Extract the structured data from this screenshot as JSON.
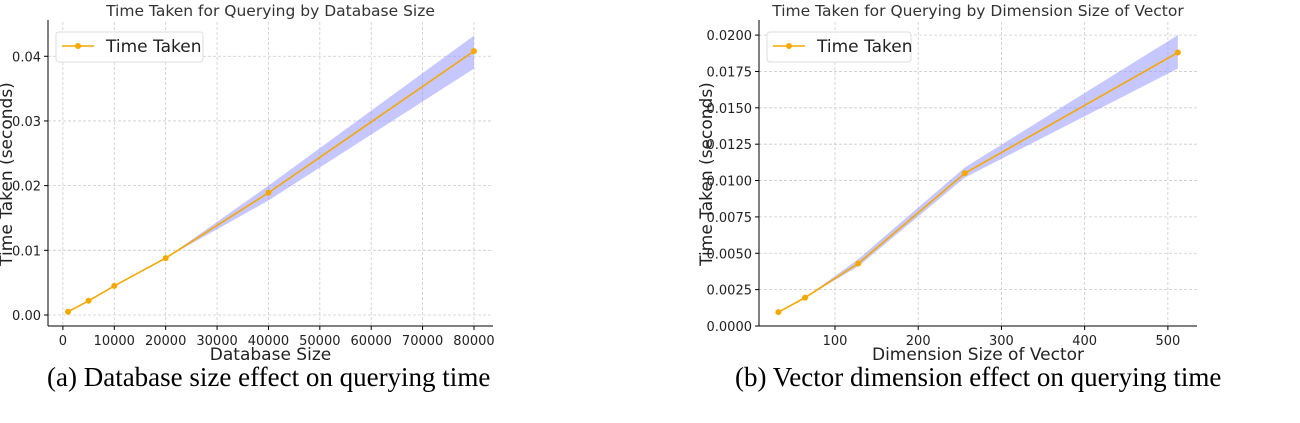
{
  "chart_data": [
    {
      "type": "line",
      "title": "Time Taken for Querying by Database Size",
      "xlabel": "Database Size",
      "ylabel": "Time Taken (seconds)",
      "xlim": [
        -2900,
        83700
      ],
      "ylim": [
        -0.0017,
        0.0453
      ],
      "xticks": [
        0,
        10000,
        20000,
        30000,
        40000,
        50000,
        60000,
        70000,
        80000
      ],
      "yticks": [
        0.0,
        0.01,
        0.02,
        0.03,
        0.04
      ],
      "ytick_labels": [
        "0.00",
        "0.01",
        "0.02",
        "0.03",
        "0.04"
      ],
      "grid": true,
      "legend": {
        "position": "top-left",
        "entries": [
          "Time Taken"
        ]
      },
      "series": [
        {
          "name": "Time Taken",
          "color": "#f5a800",
          "x": [
            1000,
            5000,
            10000,
            20000,
            40000,
            80000
          ],
          "y": [
            0.0005,
            0.0022,
            0.0045,
            0.0088,
            0.0189,
            0.0408
          ],
          "band_lower": [
            0.0005,
            0.0022,
            0.0045,
            0.0088,
            0.0177,
            0.0381
          ],
          "band_upper": [
            0.0005,
            0.0022,
            0.0045,
            0.0088,
            0.02,
            0.0432
          ]
        }
      ],
      "band_color": "#9999ff",
      "caption": "(a) Database size effect on querying time"
    },
    {
      "type": "line",
      "title": "Time Taken for Querying by Dimension Size of Vector",
      "xlabel": "Dimension Size of Vector",
      "ylabel": "Time Taken (seconds)",
      "xlim": [
        8.7,
        535
      ],
      "ylim": [
        0,
        0.0209
      ],
      "xticks": [
        100,
        200,
        300,
        400,
        500
      ],
      "yticks": [
        0,
        0.0025,
        0.005,
        0.0075,
        0.01,
        0.0125,
        0.015,
        0.0175,
        0.02
      ],
      "ytick_labels": [
        "0.0000",
        "0.0025",
        "0.0050",
        "0.0075",
        "0.0100",
        "0.0125",
        "0.0150",
        "0.0175",
        "0.0200"
      ],
      "grid": true,
      "legend": {
        "position": "top-left",
        "entries": [
          "Time Taken"
        ]
      },
      "series": [
        {
          "name": "Time Taken",
          "color": "#f5a800",
          "x": [
            32,
            64,
            128,
            256,
            512
          ],
          "y": [
            0.00095,
            0.00195,
            0.0043,
            0.0105,
            0.0188
          ],
          "band_lower": [
            0.00095,
            0.00195,
            0.0041,
            0.0102,
            0.0177
          ],
          "band_upper": [
            0.00095,
            0.00195,
            0.0046,
            0.0109,
            0.02
          ]
        }
      ],
      "band_color": "#9999ff",
      "caption": "(b) Vector dimension effect on querying time"
    }
  ]
}
